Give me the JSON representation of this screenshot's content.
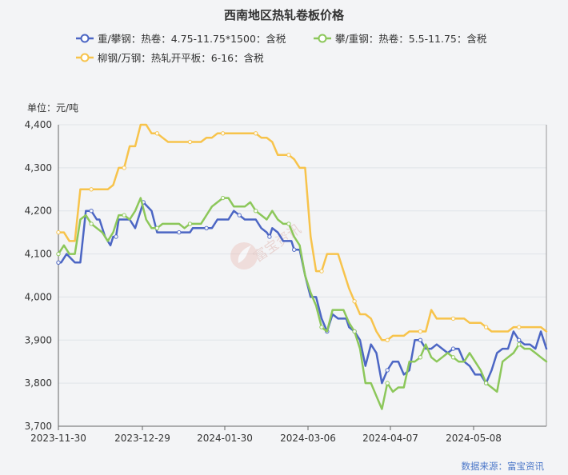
{
  "chart_data": {
    "type": "line",
    "title": "西南地区热轧卷板价格",
    "ylabel": "单位：元/吨",
    "ylim": [
      3700,
      4400
    ],
    "yticks": [
      "4,400",
      "4,300",
      "4,200",
      "4,100",
      "4,000",
      "3,900",
      "3,800",
      "3,700"
    ],
    "xticks": [
      "2023-11-30",
      "2023-12-29",
      "2024-01-30",
      "2024-03-06",
      "2024-04-07",
      "2024-05-08"
    ],
    "grid": true,
    "legend": "top",
    "series": [
      {
        "name": "重/攀钢：热卷：4.75-11.75*1500：含税",
        "color": "#4c66c4",
        "x": [
          0,
          1,
          3,
          6,
          8,
          10,
          12,
          14,
          15,
          17,
          19,
          20,
          21,
          22,
          24,
          26,
          28,
          30,
          31,
          34,
          36,
          38,
          40,
          42,
          44,
          46,
          48,
          49,
          50,
          52,
          54,
          56,
          58,
          60,
          62,
          64,
          66,
          68,
          70,
          72,
          74,
          76,
          77,
          78,
          80,
          82,
          84,
          85,
          86,
          88,
          90,
          92,
          94,
          96,
          98,
          100,
          102,
          104,
          105,
          106,
          108,
          110,
          112,
          114,
          116,
          118,
          120,
          122,
          124,
          126,
          128,
          130,
          132,
          134,
          136,
          138,
          140,
          142,
          144,
          146,
          148,
          150,
          152,
          154,
          156,
          158,
          160,
          162,
          164,
          166,
          168,
          170,
          172,
          174,
          176,
          178
        ],
        "y": [
          4080,
          4080,
          4100,
          4080,
          4080,
          4200,
          4200,
          4180,
          4180,
          4140,
          4120,
          4140,
          4140,
          4180,
          4180,
          4180,
          4160,
          4200,
          4220,
          4200,
          4150,
          4150,
          4150,
          4150,
          4150,
          4150,
          4150,
          4160,
          4160,
          4160,
          4160,
          4160,
          4180,
          4180,
          4180,
          4200,
          4190,
          4180,
          4180,
          4180,
          4160,
          4150,
          4140,
          4160,
          4150,
          4130,
          4130,
          4130,
          4110,
          4110,
          4050,
          4000,
          4000,
          3950,
          3920,
          3960,
          3950,
          3950,
          3950,
          3930,
          3920,
          3900,
          3840,
          3890,
          3870,
          3800,
          3830,
          3850,
          3850,
          3820,
          3830,
          3900,
          3900,
          3880,
          3880,
          3890,
          3880,
          3870,
          3880,
          3880,
          3850,
          3840,
          3820,
          3820,
          3800,
          3830,
          3870,
          3880,
          3880,
          3920,
          3900,
          3890,
          3890,
          3880,
          3920,
          3880
        ]
      },
      {
        "name": "攀/重钢：热卷：5.5-11.75：含税",
        "color": "#8cc75a",
        "x": [
          0,
          2,
          4,
          6,
          8,
          10,
          12,
          14,
          16,
          18,
          20,
          22,
          24,
          26,
          28,
          30,
          32,
          34,
          36,
          38,
          40,
          42,
          44,
          46,
          48,
          50,
          52,
          54,
          56,
          58,
          60,
          62,
          64,
          66,
          68,
          70,
          72,
          74,
          76,
          78,
          80,
          82,
          84,
          86,
          88,
          90,
          92,
          94,
          96,
          98,
          100,
          102,
          104,
          106,
          108,
          110,
          112,
          114,
          116,
          118,
          120,
          122,
          124,
          126,
          128,
          130,
          132,
          134,
          136,
          138,
          140,
          142,
          144,
          146,
          148,
          150,
          152,
          154,
          156,
          158,
          160,
          162,
          164,
          166,
          168,
          170,
          172,
          174,
          176,
          178
        ],
        "y": [
          4100,
          4120,
          4100,
          4100,
          4180,
          4190,
          4170,
          4160,
          4150,
          4130,
          4150,
          4190,
          4190,
          4180,
          4200,
          4230,
          4180,
          4160,
          4160,
          4170,
          4170,
          4170,
          4170,
          4160,
          4170,
          4170,
          4170,
          4190,
          4210,
          4220,
          4230,
          4230,
          4210,
          4210,
          4210,
          4220,
          4200,
          4190,
          4180,
          4200,
          4180,
          4170,
          4170,
          4140,
          4120,
          4050,
          4010,
          3980,
          3930,
          3920,
          3970,
          3970,
          3970,
          3940,
          3920,
          3880,
          3800,
          3800,
          3770,
          3740,
          3800,
          3780,
          3790,
          3790,
          3850,
          3850,
          3860,
          3890,
          3860,
          3850,
          3860,
          3870,
          3860,
          3850,
          3850,
          3870,
          3850,
          3830,
          3800,
          3790,
          3780,
          3850,
          3860,
          3870,
          3890,
          3880,
          3880,
          3870,
          3860,
          3850
        ]
      },
      {
        "name": "柳钢/万钢：热轧开平板：6-16：含税",
        "color": "#f7c34b",
        "x": [
          0,
          2,
          4,
          6,
          8,
          10,
          12,
          14,
          16,
          18,
          20,
          22,
          24,
          26,
          28,
          30,
          32,
          34,
          36,
          38,
          40,
          42,
          44,
          46,
          48,
          50,
          52,
          54,
          56,
          58,
          60,
          62,
          64,
          66,
          68,
          70,
          72,
          74,
          76,
          78,
          80,
          82,
          84,
          86,
          88,
          90,
          92,
          94,
          96,
          98,
          100,
          102,
          104,
          106,
          108,
          110,
          112,
          114,
          116,
          118,
          120,
          122,
          124,
          126,
          128,
          130,
          132,
          134,
          136,
          138,
          140,
          142,
          144,
          146,
          148,
          150,
          152,
          154,
          156,
          158,
          160,
          162,
          164,
          166,
          168,
          170,
          172,
          174,
          176,
          178
        ],
        "y": [
          4150,
          4150,
          4130,
          4130,
          4250,
          4250,
          4250,
          4250,
          4250,
          4250,
          4260,
          4300,
          4300,
          4350,
          4350,
          4400,
          4400,
          4380,
          4380,
          4370,
          4360,
          4360,
          4360,
          4360,
          4360,
          4360,
          4360,
          4370,
          4370,
          4380,
          4380,
          4380,
          4380,
          4380,
          4380,
          4380,
          4380,
          4370,
          4370,
          4360,
          4330,
          4330,
          4330,
          4320,
          4300,
          4300,
          4140,
          4060,
          4060,
          4100,
          4100,
          4100,
          4060,
          4020,
          3990,
          3960,
          3960,
          3950,
          3920,
          3900,
          3900,
          3910,
          3910,
          3910,
          3920,
          3920,
          3920,
          3920,
          3970,
          3950,
          3950,
          3950,
          3950,
          3950,
          3950,
          3940,
          3940,
          3940,
          3930,
          3920,
          3920,
          3920,
          3920,
          3930,
          3930,
          3930,
          3930,
          3930,
          3930,
          3920
        ]
      }
    ]
  },
  "source_text": "数据来源：富宝资讯",
  "watermark_text": "富宝资讯"
}
